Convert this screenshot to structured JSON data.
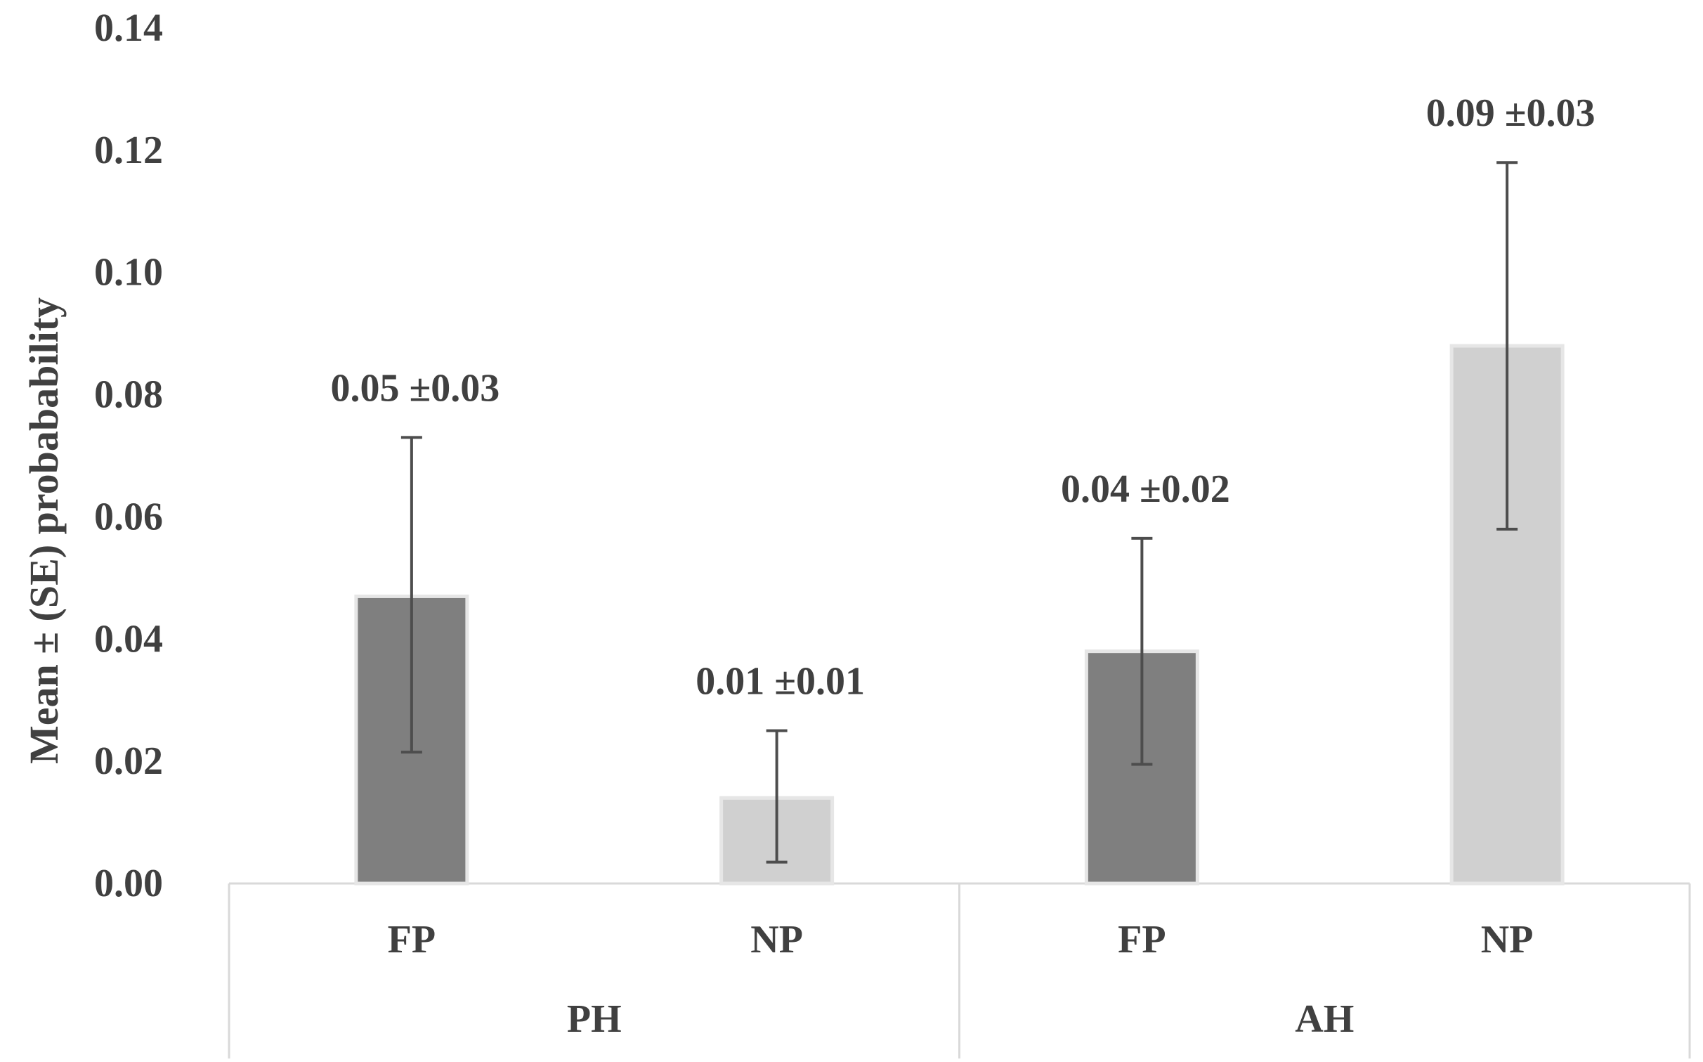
{
  "chart_data": {
    "type": "bar",
    "title": "",
    "xlabel": "",
    "ylabel": "Mean ± (SE) probabability",
    "ylim": [
      0,
      0.14
    ],
    "yticks": [
      "0.00",
      "0.02",
      "0.04",
      "0.06",
      "0.08",
      "0.10",
      "0.12",
      "0.14"
    ],
    "grid": false,
    "groups": [
      {
        "label": "PH",
        "bars": [
          {
            "category": "FP",
            "value": 0.047,
            "error_low": 0.0215,
            "error_high": 0.073,
            "label": "0.05 ±0.03",
            "color": "#7f7f7f"
          },
          {
            "category": "NP",
            "value": 0.014,
            "error_low": 0.0035,
            "error_high": 0.025,
            "label": "0.01 ±0.01",
            "color": "#d0d0d0"
          }
        ]
      },
      {
        "label": "AH",
        "bars": [
          {
            "category": "FP",
            "value": 0.038,
            "error_low": 0.0195,
            "error_high": 0.0565,
            "label": "0.04 ±0.02",
            "color": "#7f7f7f"
          },
          {
            "category": "NP",
            "value": 0.088,
            "error_low": 0.058,
            "error_high": 0.118,
            "label": "0.09 ±0.03",
            "color": "#d0d0d0"
          }
        ]
      }
    ]
  }
}
